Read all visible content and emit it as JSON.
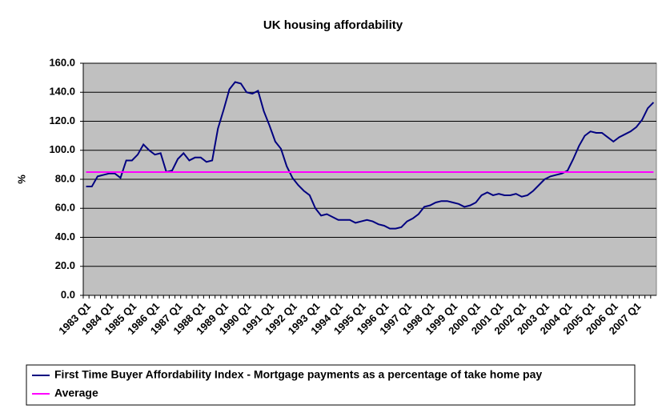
{
  "chart_data": {
    "type": "line",
    "title": "UK housing affordability",
    "y_label": "%",
    "categories": [
      "1983 Q1",
      null,
      null,
      null,
      "1984 Q1",
      null,
      null,
      null,
      "1985 Q1",
      null,
      null,
      null,
      "1986 Q1",
      null,
      null,
      null,
      "1987 Q1",
      null,
      null,
      null,
      "1988 Q1",
      null,
      null,
      null,
      "1989 Q1",
      null,
      null,
      null,
      "1990 Q1",
      null,
      null,
      null,
      "1991 Q1",
      null,
      null,
      null,
      "1992 Q1",
      null,
      null,
      null,
      "1993 Q1",
      null,
      null,
      null,
      "1994 Q1",
      null,
      null,
      null,
      "1995 Q1",
      null,
      null,
      null,
      "1996 Q1",
      null,
      null,
      null,
      "1997 Q1",
      null,
      null,
      null,
      "1998 Q1",
      null,
      null,
      null,
      "1999 Q1",
      null,
      null,
      null,
      "2000 Q1",
      null,
      null,
      null,
      "2001 Q1",
      null,
      null,
      null,
      "2002 Q1",
      null,
      null,
      null,
      "2003 Q1",
      null,
      null,
      null,
      "2004 Q1",
      null,
      null,
      null,
      "2005 Q1",
      null,
      null,
      null,
      "2006 Q1",
      null,
      null,
      null,
      "2007 Q1",
      null,
      null,
      null
    ],
    "series": [
      {
        "name": "First Time Buyer Affordability Index - Mortgage payments as a percentage of take home pay",
        "color": "#000080",
        "values": [
          75,
          75,
          82,
          83,
          84,
          84,
          81,
          93,
          93,
          97,
          104,
          100,
          97,
          98,
          85,
          86,
          94,
          98,
          93,
          95,
          95,
          92,
          93,
          115,
          128,
          142,
          147,
          146,
          140,
          139,
          141,
          127,
          117,
          106,
          101,
          89,
          81,
          76,
          72,
          69,
          60,
          55,
          56,
          54,
          52,
          52,
          52,
          50,
          51,
          52,
          51,
          49,
          48,
          46,
          46,
          47,
          51,
          53,
          56,
          61,
          62,
          64,
          65,
          65,
          64,
          63,
          61,
          62,
          64,
          69,
          71,
          69,
          70,
          69,
          69,
          70,
          68,
          69,
          72,
          76,
          80,
          82,
          83,
          84,
          86,
          94,
          103,
          110,
          113,
          112,
          112,
          109,
          106,
          109,
          111,
          113,
          116,
          121,
          129,
          133
        ]
      },
      {
        "name": "Average",
        "color": "#ff00ff",
        "values": [
          85,
          85,
          85,
          85,
          85,
          85,
          85,
          85,
          85,
          85,
          85,
          85,
          85,
          85,
          85,
          85,
          85,
          85,
          85,
          85,
          85,
          85,
          85,
          85,
          85,
          85,
          85,
          85,
          85,
          85,
          85,
          85,
          85,
          85,
          85,
          85,
          85,
          85,
          85,
          85,
          85,
          85,
          85,
          85,
          85,
          85,
          85,
          85,
          85,
          85,
          85,
          85,
          85,
          85,
          85,
          85,
          85,
          85,
          85,
          85,
          85,
          85,
          85,
          85,
          85,
          85,
          85,
          85,
          85,
          85,
          85,
          85,
          85,
          85,
          85,
          85,
          85,
          85,
          85,
          85,
          85,
          85,
          85,
          85,
          85,
          85,
          85,
          85,
          85,
          85,
          85,
          85,
          85,
          85,
          85,
          85,
          85,
          85,
          85,
          85
        ]
      }
    ],
    "ylim": [
      0,
      160
    ],
    "yticks": [
      {
        "value": 0,
        "label": "0.0"
      },
      {
        "value": 20,
        "label": "20.0"
      },
      {
        "value": 40,
        "label": "40.0"
      },
      {
        "value": 60,
        "label": "60.0"
      },
      {
        "value": 80,
        "label": "80.0"
      },
      {
        "value": 100,
        "label": "100.0"
      },
      {
        "value": 120,
        "label": "120.0"
      },
      {
        "value": 140,
        "label": "140.0"
      },
      {
        "value": 160,
        "label": "160.0"
      }
    ],
    "grid": true,
    "plot_background": "#c0c0c0"
  }
}
